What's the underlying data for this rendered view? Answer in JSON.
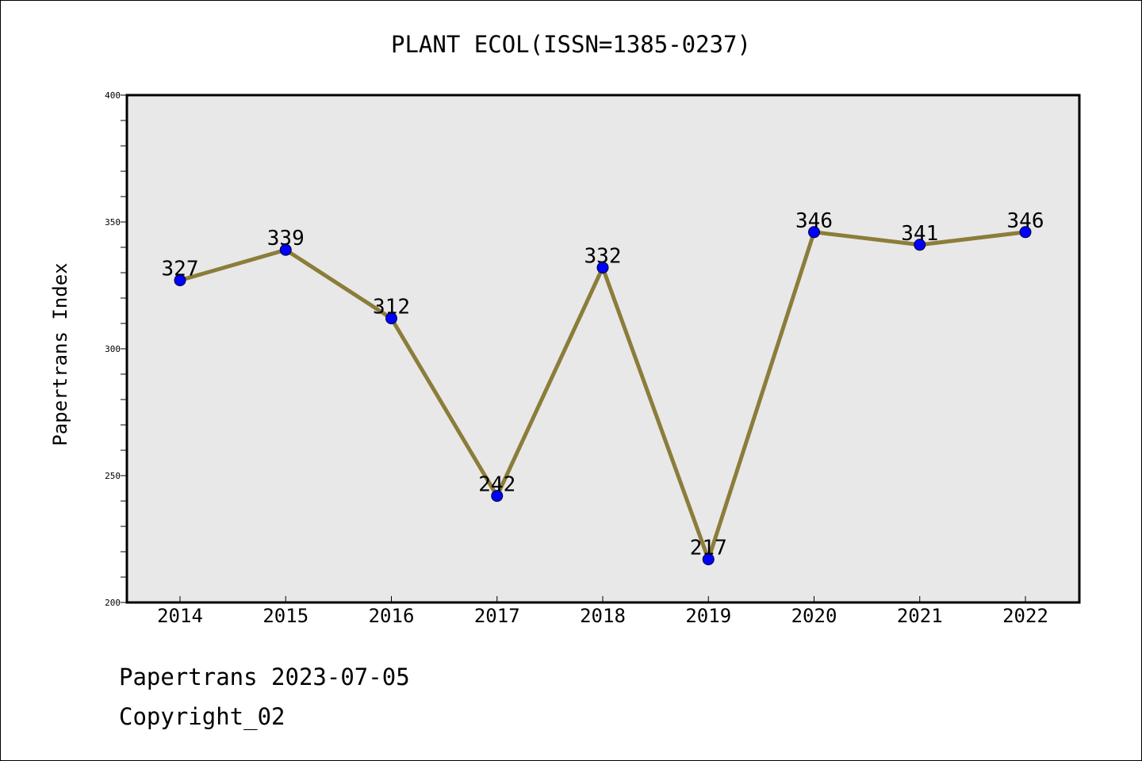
{
  "chart_data": {
    "type": "line",
    "title": "PLANT ECOL(ISSN=1385-0237)",
    "ylabel": "Papertrans Index",
    "xlabel": "",
    "categories": [
      "2014",
      "2015",
      "2016",
      "2017",
      "2018",
      "2019",
      "2020",
      "2021",
      "2022"
    ],
    "values": [
      327,
      339,
      312,
      242,
      332,
      217,
      346,
      341,
      346
    ],
    "ylim": [
      200,
      400
    ],
    "yticks": [
      200,
      250,
      300,
      350,
      400
    ],
    "grid": false,
    "colors": {
      "line": "#8b7d3a",
      "marker": "#0000ff",
      "plot_background": "#e8e8e8"
    }
  },
  "footer": {
    "line1": "Papertrans 2023-07-05",
    "line2": "Copyright_02"
  }
}
